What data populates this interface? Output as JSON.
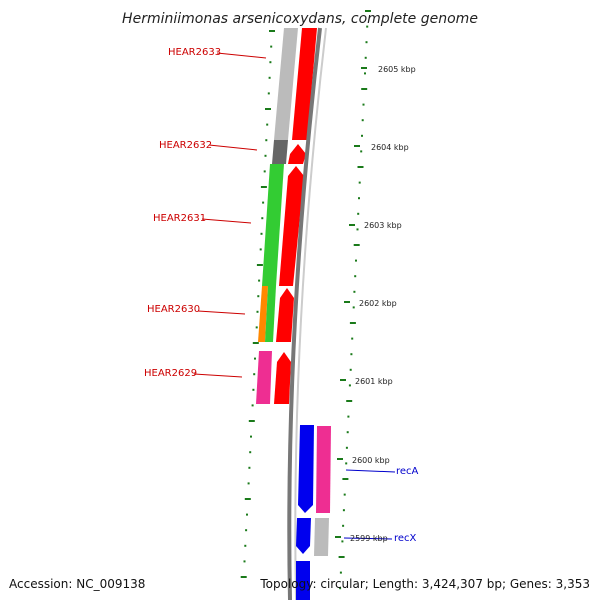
{
  "title": "Herminiimonas arsenicoxydans, complete genome",
  "footer": {
    "accession": "Accession: NC_009138",
    "topology": "Topology: circular; Length: 3,424,307 bp; Genes: 3,353"
  },
  "colors": {
    "red_strand_gene": "#ff0000",
    "pink_gene": "#ee2e92",
    "green_gene": "#33cc33",
    "orange_gene": "#ff8800",
    "gray_gene": "#bbbbbb",
    "dark_gray_gene": "#666666",
    "blue_gene": "#0000ee",
    "backbone": "#888888",
    "gc_tick": "#1a7a1a",
    "locus_label": "#cc0000",
    "gene_label": "#0000cc"
  },
  "scale_labels": [
    "2605 kbp",
    "2604 kbp",
    "2603 kbp",
    "2602 kbp",
    "2601 kbp",
    "2600 kbp",
    "2599 kbp"
  ],
  "locus_labels": [
    "HEAR2633",
    "HEAR2632",
    "HEAR2631",
    "HEAR2630",
    "HEAR2629"
  ],
  "gene_labels": [
    "recA",
    "recX"
  ]
}
